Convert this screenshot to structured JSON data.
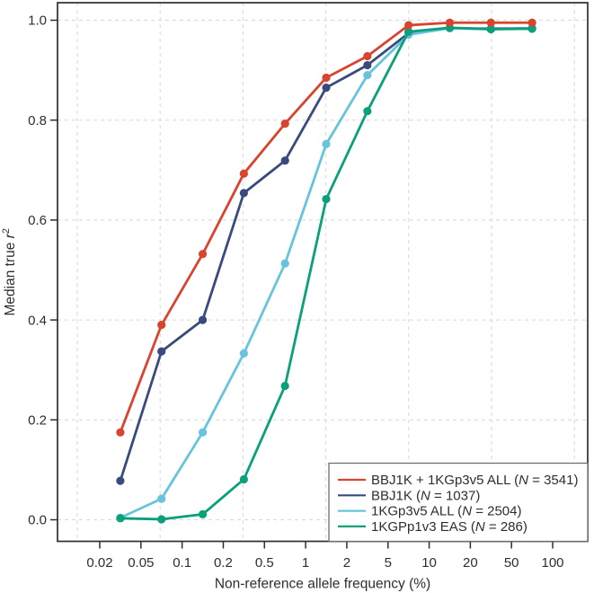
{
  "figure": {
    "background": "#ffffff",
    "frame_color": "#2e2e2e",
    "grid_color": "#d7d7d7",
    "text_color": "#2e2e2e",
    "legend_border_color": "#6e6e6e"
  },
  "chart_data": {
    "type": "line",
    "title": "",
    "xlabel": "Non-reference allele frequency (%)",
    "ylabel": {
      "text": "Median true ",
      "variable": "r",
      "superscript": "2"
    },
    "x_scale": "log",
    "x_tick_labels": [
      "0.02",
      "0.05",
      "0.1",
      "0.2",
      "0.5",
      "1",
      "2",
      "5",
      "10",
      "20",
      "50",
      "100"
    ],
    "y_tick_labels": [
      "0.0",
      "0.2",
      "0.4",
      "0.6",
      "0.8",
      "1.0"
    ],
    "ylim": [
      0.0,
      1.0
    ],
    "grid": true,
    "legend_position": "bottom-right",
    "legend_n_symbol": "N",
    "x_bin_centers": [
      0.032,
      0.071,
      0.14,
      0.32,
      0.71,
      1.4,
      3.2,
      7.1,
      14,
      32,
      71
    ],
    "series": [
      {
        "name": "BBJ1K + 1KGp3v5 ALL",
        "n": "3541",
        "color": "#d8442e",
        "values": [
          0.175,
          0.39,
          0.532,
          0.693,
          0.793,
          0.885,
          0.928,
          0.99,
          0.995,
          0.995,
          0.995
        ]
      },
      {
        "name": "BBJ1K",
        "n": "1037",
        "color": "#394b7d",
        "values": [
          0.078,
          0.337,
          0.4,
          0.654,
          0.719,
          0.865,
          0.91,
          0.974,
          0.984,
          0.983,
          0.984
        ]
      },
      {
        "name": "1KGp3v5 ALL",
        "n": "2504",
        "color": "#68c3dd",
        "values": [
          0.004,
          0.042,
          0.175,
          0.333,
          0.513,
          0.752,
          0.89,
          0.971,
          0.984,
          0.982,
          0.984
        ]
      },
      {
        "name": "1KGPp1v3 EAS",
        "n": "286",
        "color": "#0aa07b",
        "values": [
          0.003,
          0.001,
          0.011,
          0.081,
          0.268,
          0.642,
          0.818,
          0.977,
          0.985,
          0.982,
          0.983
        ]
      }
    ],
    "draw_order": [
      1,
      2,
      3,
      0
    ]
  }
}
